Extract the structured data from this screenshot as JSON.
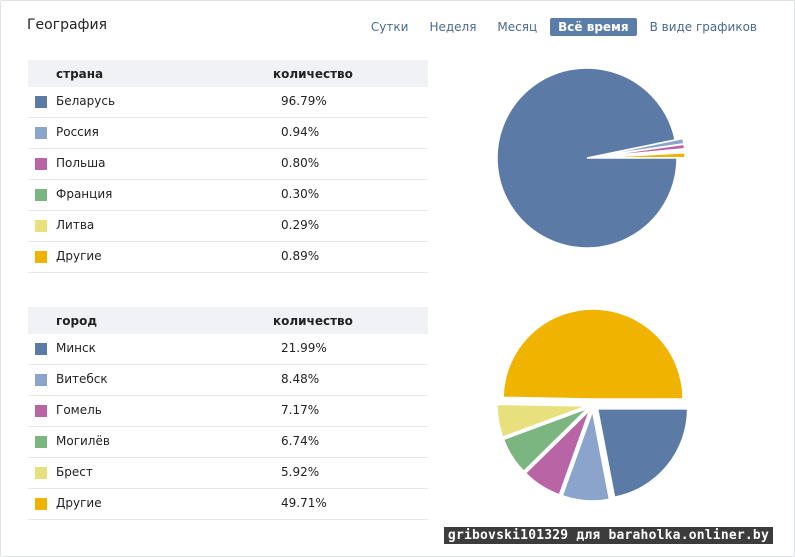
{
  "header": {
    "title": "География",
    "tabs": [
      {
        "label": "Сутки",
        "active": false
      },
      {
        "label": "Неделя",
        "active": false
      },
      {
        "label": "Месяц",
        "active": false
      },
      {
        "label": "Всё время",
        "active": true
      },
      {
        "label": "В виде графиков",
        "active": false
      }
    ]
  },
  "countries": {
    "col_name": "страна",
    "col_value": "количество"
  },
  "cities": {
    "col_name": "город",
    "col_value": "количество"
  },
  "watermark": "gribovski101329 для baraholka.onliner.by",
  "chart_data": [
    {
      "type": "pie",
      "categories": [
        "Беларусь",
        "Россия",
        "Польша",
        "Франция",
        "Литва",
        "Другие"
      ],
      "values": [
        96.79,
        0.94,
        0.8,
        0.3,
        0.29,
        0.89
      ],
      "labels": [
        "96.79%",
        "0.94%",
        "0.80%",
        "0.30%",
        "0.29%",
        "0.89%"
      ],
      "colors": [
        "#5b7ba6",
        "#8aa4cc",
        "#b964a5",
        "#7bb57f",
        "#e8e07c",
        "#f0b400"
      ]
    },
    {
      "type": "pie",
      "categories": [
        "Минск",
        "Витебск",
        "Гомель",
        "Могилёв",
        "Брест",
        "Другие"
      ],
      "values": [
        21.99,
        8.48,
        7.17,
        6.74,
        5.92,
        49.71
      ],
      "labels": [
        "21.99%",
        "8.48%",
        "7.17%",
        "6.74%",
        "5.92%",
        "49.71%"
      ],
      "colors": [
        "#5b7ba6",
        "#8aa4cc",
        "#b964a5",
        "#7bb57f",
        "#e8e07c",
        "#f0b400"
      ]
    }
  ]
}
